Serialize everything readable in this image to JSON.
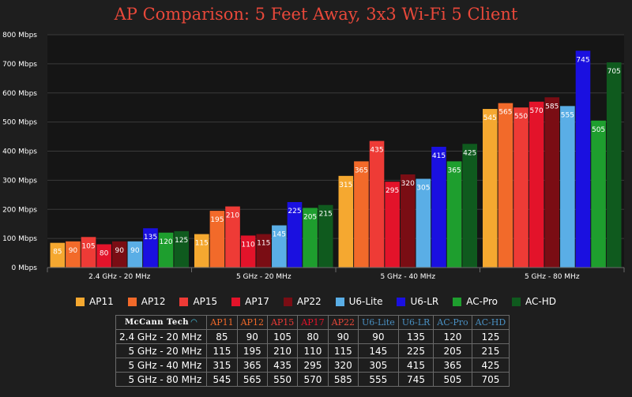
{
  "title": "AP Comparison: 5 Feet Away, 3x3 Wi-Fi 5 Client",
  "chart_data": {
    "type": "bar",
    "title": "AP Comparison: 5 Feet Away, 3x3 Wi-Fi 5 Client",
    "categories": [
      "2.4 GHz - 20 MHz",
      "5 GHz - 20 MHz",
      "5 GHz - 40 MHz",
      "5 GHz - 80 MHz"
    ],
    "series": [
      {
        "name": "AP11",
        "color": "#f5a830",
        "values": [
          85,
          115,
          315,
          545
        ]
      },
      {
        "name": "AP12",
        "color": "#f26a2a",
        "values": [
          90,
          195,
          365,
          565
        ]
      },
      {
        "name": "AP15",
        "color": "#ee3b36",
        "values": [
          105,
          210,
          435,
          550
        ]
      },
      {
        "name": "AP17",
        "color": "#e3132a",
        "values": [
          80,
          110,
          295,
          570
        ]
      },
      {
        "name": "AP22",
        "color": "#7a0d14",
        "values": [
          90,
          115,
          320,
          585
        ]
      },
      {
        "name": "U6-Lite",
        "color": "#5aaee6",
        "values": [
          90,
          145,
          305,
          555
        ]
      },
      {
        "name": "U6-LR",
        "color": "#1a10e0",
        "values": [
          135,
          225,
          415,
          745
        ]
      },
      {
        "name": "AC-Pro",
        "color": "#1e9e2e",
        "values": [
          120,
          205,
          365,
          505
        ]
      },
      {
        "name": "AC-HD",
        "color": "#0f5a1e",
        "values": [
          125,
          215,
          425,
          705
        ]
      }
    ],
    "ylim": [
      0,
      800
    ],
    "yticks": [
      0,
      100,
      200,
      300,
      400,
      500,
      600,
      700,
      800
    ],
    "ytick_labels": [
      "0 Mbps",
      "100 Mbps",
      "200 Mbps",
      "300 Mbps",
      "400 Mbps",
      "500 Mbps",
      "600 Mbps",
      "700 Mbps",
      "800 Mbps"
    ],
    "xlabel": "",
    "ylabel": "",
    "grid": true,
    "legend_position": "bottom"
  },
  "table": {
    "brand": "McCann Tech",
    "brand_icon": "wifi-icon",
    "header_colors": [
      "#f26a2a",
      "#f26a2a",
      "#ee3b36",
      "#e3132a",
      "#e8483a",
      "#4a90c2",
      "#4a90c2",
      "#4a90c2",
      "#4a90c2"
    ]
  }
}
